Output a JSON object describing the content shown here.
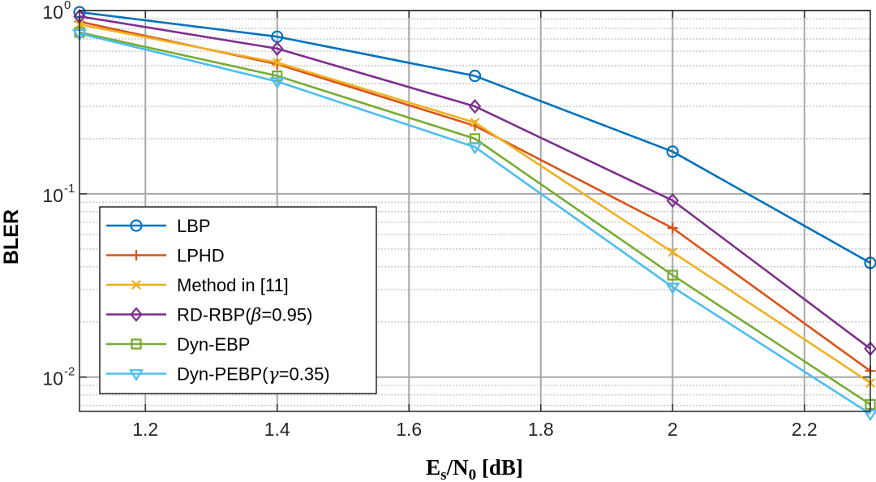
{
  "chart_data": {
    "type": "line",
    "title": "",
    "xlabel": "E",
    "xlabel_sub1": "s",
    "xlabel_mid": "/N",
    "xlabel_sub2": "0",
    "xlabel_unit": " [dB]",
    "ylabel": "BLER",
    "xscale": "linear",
    "yscale": "log",
    "xlim": [
      1.1,
      2.3
    ],
    "ylim": [
      0.0065,
      1.0
    ],
    "grid": true,
    "legend_position": "lower-left",
    "x": [
      1.1,
      1.4,
      1.7,
      2.0,
      2.3
    ],
    "x_ticks": [
      1.2,
      1.4,
      1.6,
      1.8,
      2.0,
      2.2
    ],
    "x_tick_labels": [
      "1.2",
      "1.4",
      "1.6",
      "1.8",
      "2",
      "2.2"
    ],
    "y_ticks": [
      {
        "base": "10",
        "exp": "0",
        "value": 1.0
      },
      {
        "base": "10",
        "exp": "-1",
        "value": 0.1
      },
      {
        "base": "10",
        "exp": "-2",
        "value": 0.01
      }
    ],
    "series": [
      {
        "name": "LBP",
        "label_parts": [
          "LBP"
        ],
        "color": "#0072BD",
        "marker": "circle",
        "values": [
          0.98,
          0.72,
          0.44,
          0.17,
          0.042
        ]
      },
      {
        "name": "LPHD",
        "label_parts": [
          "LPHD"
        ],
        "color": "#D95319",
        "marker": "plus",
        "values": [
          0.87,
          0.51,
          0.235,
          0.065,
          0.0108
        ]
      },
      {
        "name": "Method in [11]",
        "label_parts": [
          "Method in [11]"
        ],
        "color": "#EDB120",
        "marker": "x",
        "values": [
          0.84,
          0.52,
          0.245,
          0.048,
          0.0093
        ]
      },
      {
        "name": "RD-RBP(β=0.95)",
        "label_parts": [
          "RD-RBP(",
          "β",
          "=0.95)"
        ],
        "color": "#7E2F8E",
        "marker": "diamond",
        "values": [
          0.93,
          0.62,
          0.3,
          0.092,
          0.0143
        ]
      },
      {
        "name": "Dyn-EBP",
        "label_parts": [
          "Dyn-EBP"
        ],
        "color": "#77AC30",
        "marker": "square",
        "values": [
          0.76,
          0.44,
          0.2,
          0.036,
          0.0071
        ]
      },
      {
        "name": "Dyn-PEBP(γ=0.35)",
        "label_parts": [
          "Dyn-PEBP(",
          "γ",
          "=0.35)"
        ],
        "color": "#4DBEEE",
        "marker": "triangle-down",
        "values": [
          0.75,
          0.41,
          0.18,
          0.031,
          0.0063
        ]
      }
    ]
  }
}
